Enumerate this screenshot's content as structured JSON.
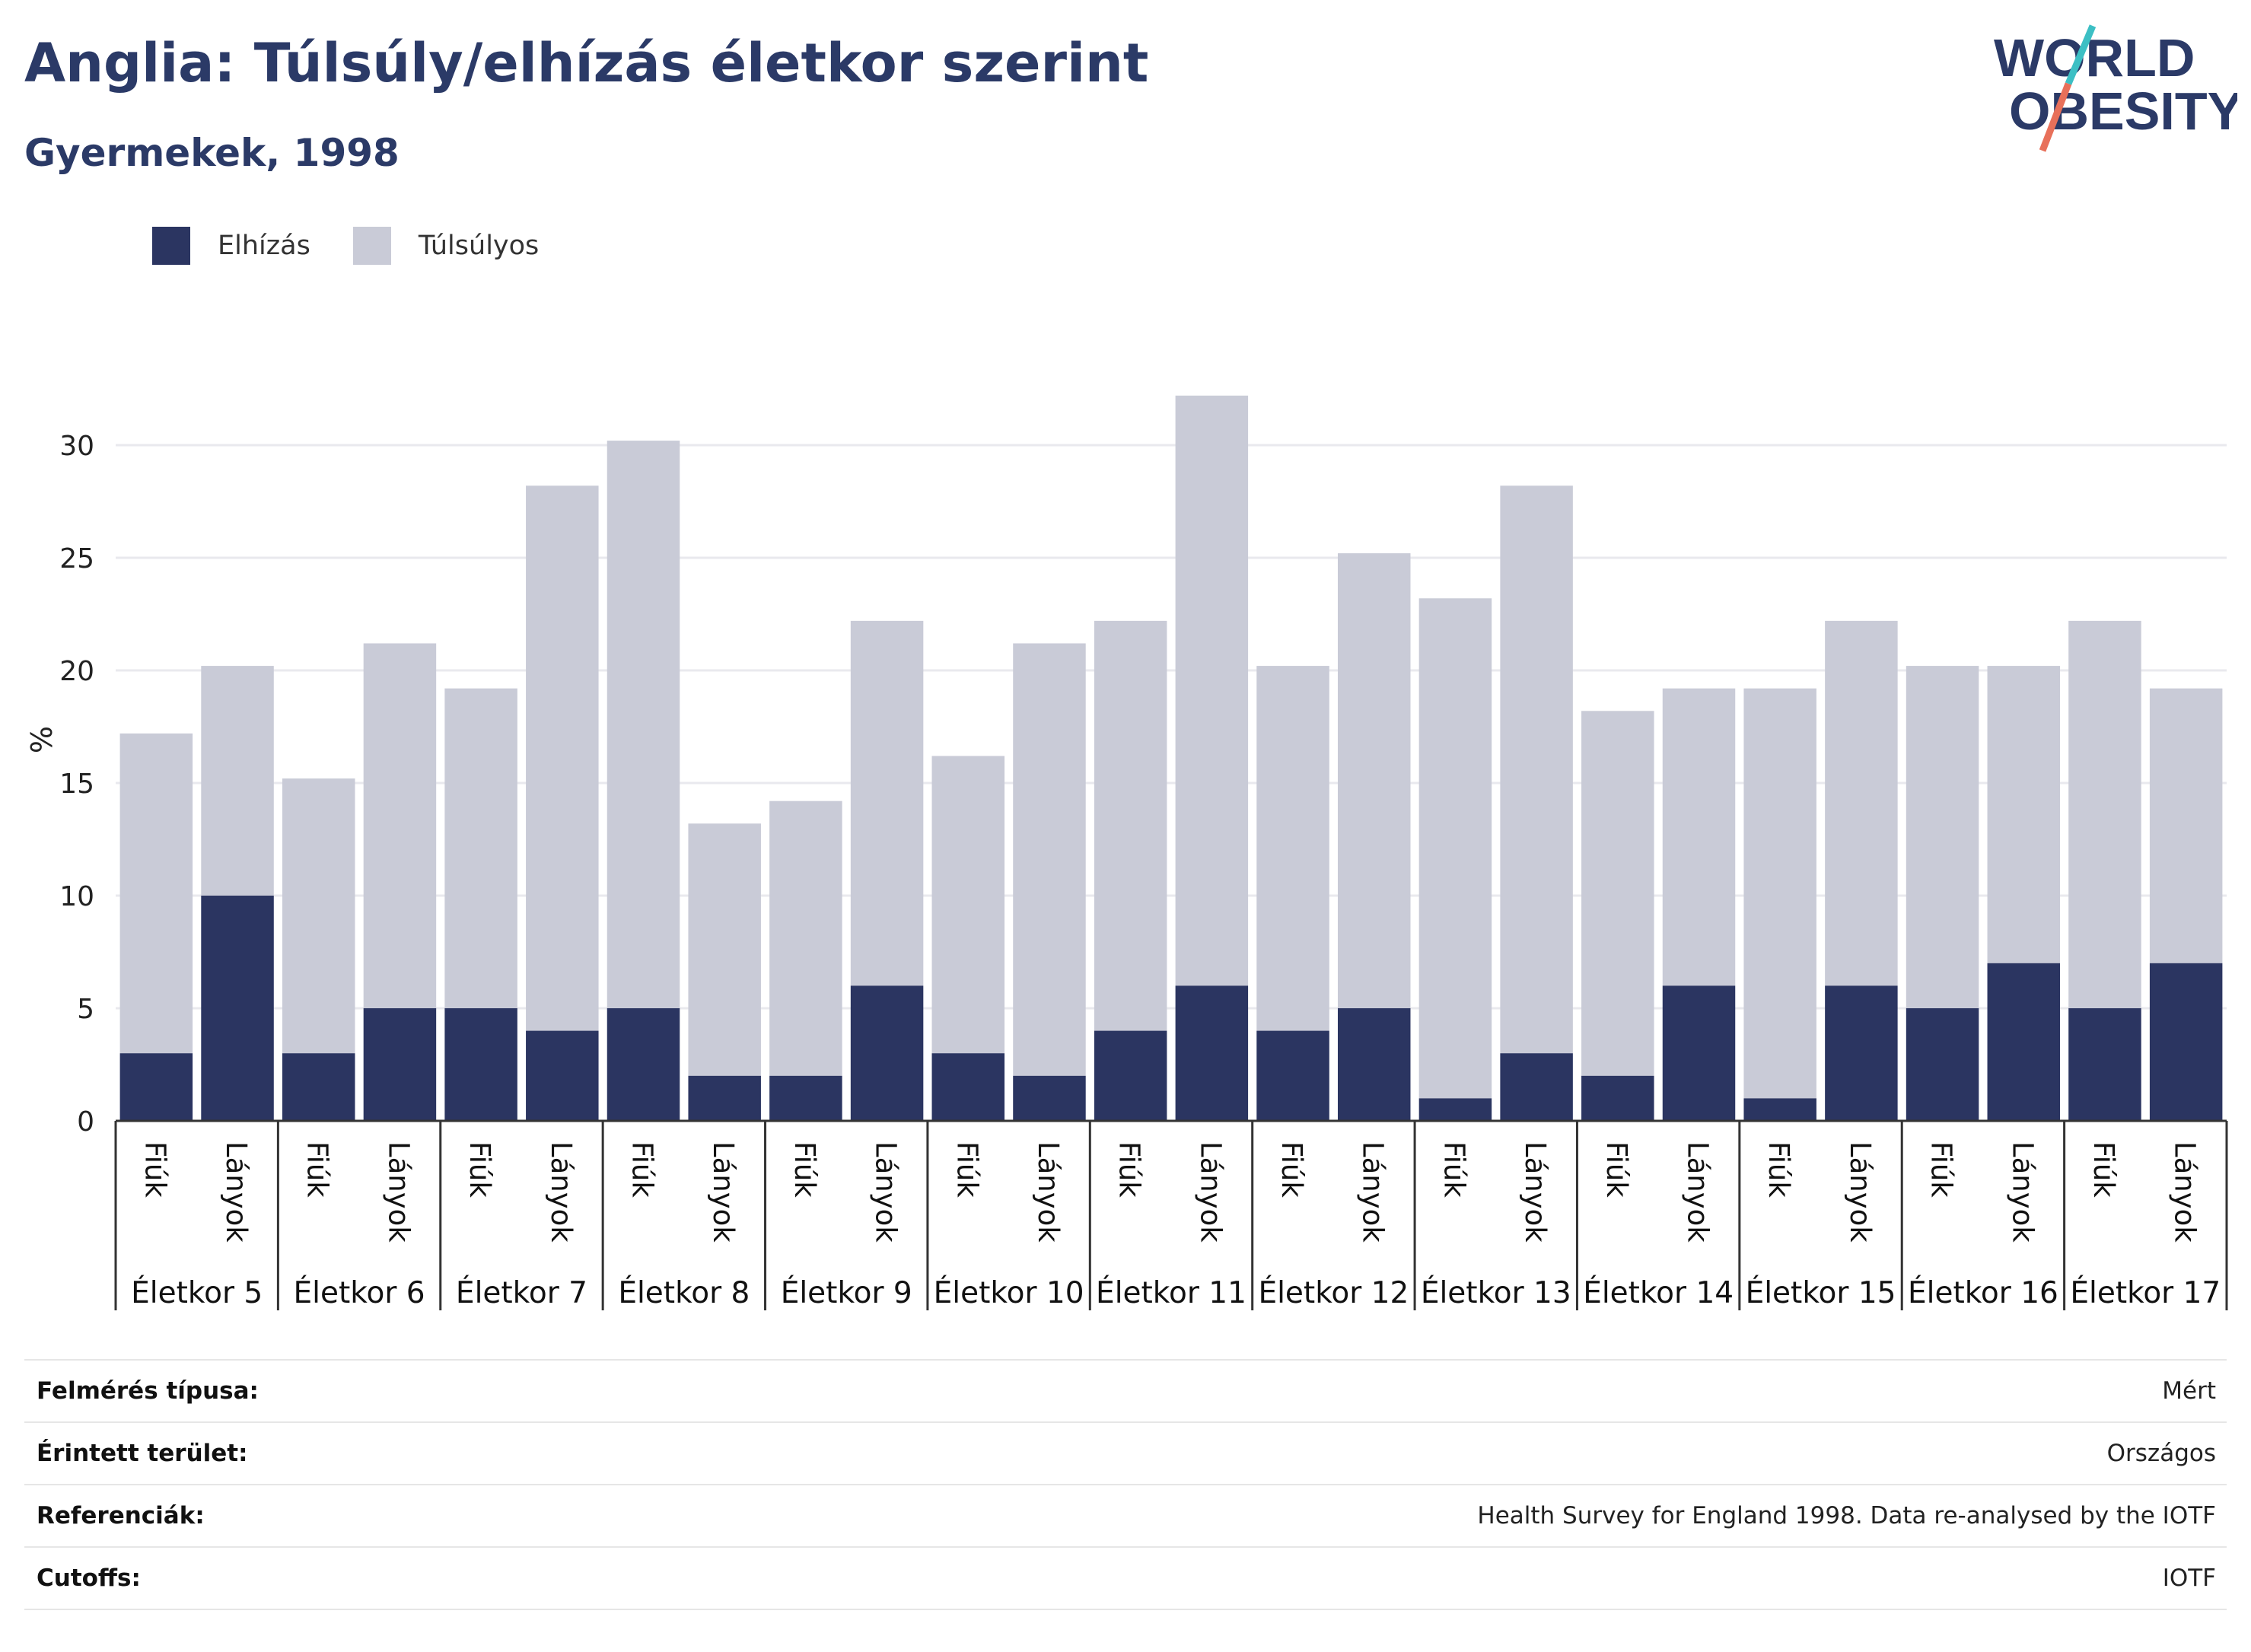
{
  "header": {
    "title": "Anglia: Túlsúly/elhízás életkor szerint",
    "subtitle": "Gyermekek, 1998"
  },
  "logo": {
    "line1": "WORLD",
    "line2": "OBESITY",
    "colors": {
      "text": "#2b3a67",
      "slash_top": "#3cbfc4",
      "slash_bottom": "#e8705a"
    }
  },
  "legend": [
    {
      "label": "Elhízás",
      "color": "#2b3561"
    },
    {
      "label": "Túlsúlyos",
      "color": "#c9cbd7"
    }
  ],
  "chart_data": {
    "type": "bar",
    "stacked": true,
    "ylabel": "%",
    "ylim": [
      0,
      35
    ],
    "yticks": [
      0,
      5,
      10,
      15,
      20,
      25,
      30
    ],
    "grid": true,
    "legend_position": "top-left",
    "groups": [
      "Életkor 5",
      "Életkor 6",
      "Életkor 7",
      "Életkor 8",
      "Életkor 9",
      "Életkor 10",
      "Életkor 11",
      "Életkor 12",
      "Életkor 13",
      "Életkor 14",
      "Életkor 15",
      "Életkor 16",
      "Életkor 17"
    ],
    "subcategories": [
      "Fiúk",
      "Lányok"
    ],
    "series": [
      {
        "name": "Elhízás",
        "color": "#2b3561",
        "values": [
          3,
          10,
          3,
          5,
          5,
          4,
          5,
          2,
          2,
          6,
          3,
          2,
          4,
          6,
          4,
          5,
          1,
          3,
          2,
          6,
          1,
          6,
          5,
          7,
          5,
          7
        ]
      },
      {
        "name": "Túlsúlyos",
        "color": "#c9cbd7",
        "values": [
          14.2,
          10.2,
          12.2,
          16.2,
          14.2,
          24.2,
          25.2,
          11.2,
          12.2,
          16.2,
          13.2,
          19.2,
          18.2,
          26.2,
          16.2,
          20.2,
          22.2,
          25.2,
          16.2,
          13.2,
          18.2,
          16.2,
          15.2,
          13.2,
          17.2,
          12.2
        ]
      }
    ]
  },
  "info": [
    {
      "label": "Felmérés típusa:",
      "value": "Mért"
    },
    {
      "label": "Érintett terület:",
      "value": "Országos"
    },
    {
      "label": "Referenciák:",
      "value": "Health Survey for England 1998. Data re-analysed by the IOTF"
    },
    {
      "label": "Cutoffs:",
      "value": "IOTF"
    }
  ]
}
